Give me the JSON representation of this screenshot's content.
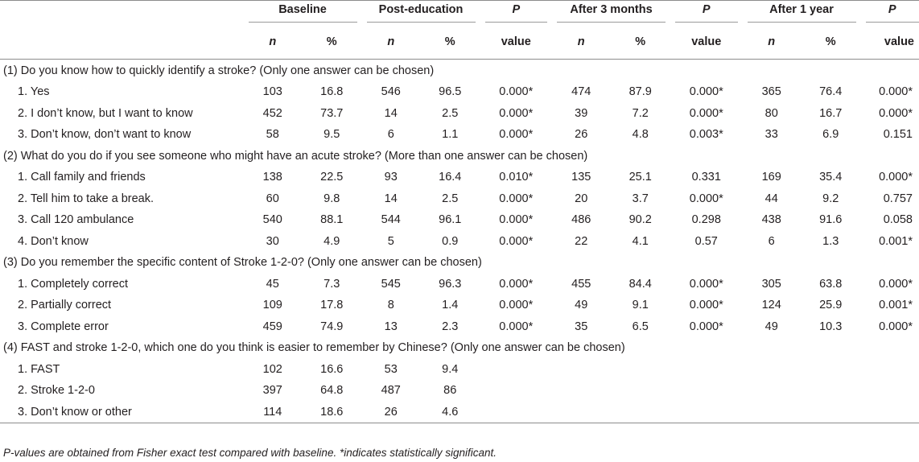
{
  "headers": {
    "baseline": "Baseline",
    "post_education": "Post-education",
    "after_3_months": "After 3 months",
    "after_1_year": "After 1 year",
    "p": "P",
    "value": "value",
    "n": "n",
    "pct": "%"
  },
  "sections": [
    {
      "title": "(1) Do you know how to quickly identify a stroke? (Only one answer can be chosen)",
      "rows": [
        {
          "label": "1.  Yes",
          "b_n": "103",
          "b_p": "16.8",
          "pe_n": "546",
          "pe_p": "96.5",
          "pe_pv": "0.000*",
          "m3_n": "474",
          "m3_p": "87.9",
          "m3_pv": "0.000*",
          "y1_n": "365",
          "y1_p": "76.4",
          "y1_pv": "0.000*"
        },
        {
          "label": "2.  I don’t know, but I want to know",
          "b_n": "452",
          "b_p": "73.7",
          "pe_n": "14",
          "pe_p": "2.5",
          "pe_pv": "0.000*",
          "m3_n": "39",
          "m3_p": "7.2",
          "m3_pv": "0.000*",
          "y1_n": "80",
          "y1_p": "16.7",
          "y1_pv": "0.000*"
        },
        {
          "label": "3.  Don’t know, don’t want to know",
          "b_n": "58",
          "b_p": "9.5",
          "pe_n": "6",
          "pe_p": "1.1",
          "pe_pv": "0.000*",
          "m3_n": "26",
          "m3_p": "4.8",
          "m3_pv": "0.003*",
          "y1_n": "33",
          "y1_p": "6.9",
          "y1_pv": "0.151"
        }
      ]
    },
    {
      "title": "(2) What do you do if you see someone who might have an acute stroke? (More than one answer can be chosen)",
      "rows": [
        {
          "label": "1.  Call family and friends",
          "b_n": "138",
          "b_p": "22.5",
          "pe_n": "93",
          "pe_p": "16.4",
          "pe_pv": "0.010*",
          "m3_n": "135",
          "m3_p": "25.1",
          "m3_pv": "0.331",
          "y1_n": "169",
          "y1_p": "35.4",
          "y1_pv": "0.000*"
        },
        {
          "label": "2.  Tell him to take a break.",
          "b_n": "60",
          "b_p": "9.8",
          "pe_n": "14",
          "pe_p": "2.5",
          "pe_pv": "0.000*",
          "m3_n": "20",
          "m3_p": "3.7",
          "m3_pv": "0.000*",
          "y1_n": "44",
          "y1_p": "9.2",
          "y1_pv": "0.757"
        },
        {
          "label": "3.  Call 120 ambulance",
          "b_n": "540",
          "b_p": "88.1",
          "pe_n": "544",
          "pe_p": "96.1",
          "pe_pv": "0.000*",
          "m3_n": "486",
          "m3_p": "90.2",
          "m3_pv": "0.298",
          "y1_n": "438",
          "y1_p": "91.6",
          "y1_pv": "0.058"
        },
        {
          "label": "4.  Don’t know",
          "b_n": "30",
          "b_p": "4.9",
          "pe_n": "5",
          "pe_p": "0.9",
          "pe_pv": "0.000*",
          "m3_n": "22",
          "m3_p": "4.1",
          "m3_pv": "0.57",
          "y1_n": "6",
          "y1_p": "1.3",
          "y1_pv": "0.001*"
        }
      ]
    },
    {
      "title": "(3) Do you remember the specific content of Stroke 1-2-0? (Only one answer can be chosen)",
      "rows": [
        {
          "label": "1.  Completely correct",
          "b_n": "45",
          "b_p": "7.3",
          "pe_n": "545",
          "pe_p": "96.3",
          "pe_pv": "0.000*",
          "m3_n": "455",
          "m3_p": "84.4",
          "m3_pv": "0.000*",
          "y1_n": "305",
          "y1_p": "63.8",
          "y1_pv": "0.000*"
        },
        {
          "label": "2.  Partially correct",
          "b_n": "109",
          "b_p": "17.8",
          "pe_n": "8",
          "pe_p": "1.4",
          "pe_pv": "0.000*",
          "m3_n": "49",
          "m3_p": "9.1",
          "m3_pv": "0.000*",
          "y1_n": "124",
          "y1_p": "25.9",
          "y1_pv": "0.001*"
        },
        {
          "label": "3.  Complete error",
          "b_n": "459",
          "b_p": "74.9",
          "pe_n": "13",
          "pe_p": "2.3",
          "pe_pv": "0.000*",
          "m3_n": "35",
          "m3_p": "6.5",
          "m3_pv": "0.000*",
          "y1_n": "49",
          "y1_p": "10.3",
          "y1_pv": "0.000*"
        }
      ]
    },
    {
      "title": "(4) FAST and stroke 1-2-0, which one do you think is easier to remember by Chinese? (Only one answer can be chosen)",
      "rows": [
        {
          "label": "1.  FAST",
          "b_n": "102",
          "b_p": "16.6",
          "pe_n": "53",
          "pe_p": "9.4",
          "pe_pv": "",
          "m3_n": "",
          "m3_p": "",
          "m3_pv": "",
          "y1_n": "",
          "y1_p": "",
          "y1_pv": ""
        },
        {
          "label": "2.  Stroke 1-2-0",
          "b_n": "397",
          "b_p": "64.8",
          "pe_n": "487",
          "pe_p": "86",
          "pe_pv": "",
          "m3_n": "",
          "m3_p": "",
          "m3_pv": "",
          "y1_n": "",
          "y1_p": "",
          "y1_pv": ""
        },
        {
          "label": "3.  Don’t know or other",
          "b_n": "114",
          "b_p": "18.6",
          "pe_n": "26",
          "pe_p": "4.6",
          "pe_pv": "",
          "m3_n": "",
          "m3_p": "",
          "m3_pv": "",
          "y1_n": "",
          "y1_p": "",
          "y1_pv": ""
        }
      ]
    }
  ],
  "footnote": "P-values are obtained from Fisher exact test compared with baseline. *indicates statistically significant."
}
